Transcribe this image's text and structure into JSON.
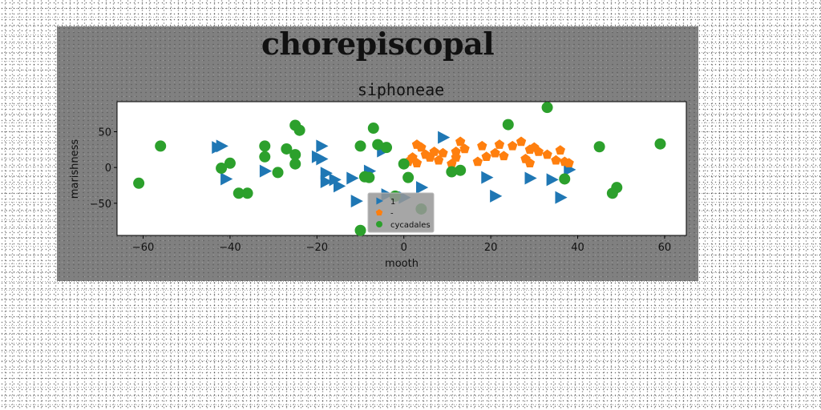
{
  "figure_title": "chorepiscopal",
  "chart_data": {
    "type": "scatter",
    "title": "siphoneae",
    "xlabel": "mooth",
    "ylabel": "marishness",
    "xlim": [
      -66,
      65
    ],
    "ylim": [
      -95,
      92
    ],
    "xticks": [
      -60,
      -40,
      -20,
      0,
      20,
      40,
      60
    ],
    "yticks": [
      -50,
      0,
      50
    ],
    "grid": false,
    "legend_position": "lower-center",
    "series": [
      {
        "name": "1",
        "marker": "triangle-right",
        "color": "#1f77b4",
        "points": [
          [
            -43,
            28
          ],
          [
            -42,
            30
          ],
          [
            -41,
            -16
          ],
          [
            -32,
            -5
          ],
          [
            -20,
            15
          ],
          [
            -19,
            12
          ],
          [
            -19,
            30
          ],
          [
            -18,
            -8
          ],
          [
            -18,
            -20
          ],
          [
            -16,
            -17
          ],
          [
            -15,
            -26
          ],
          [
            -12,
            -15
          ],
          [
            -11,
            -47
          ],
          [
            -8,
            -5
          ],
          [
            -5,
            23
          ],
          [
            -4,
            -38
          ],
          [
            0,
            -42
          ],
          [
            4,
            -28
          ],
          [
            9,
            42
          ],
          [
            19,
            -14
          ],
          [
            21,
            -40
          ],
          [
            29,
            -15
          ],
          [
            34,
            -17
          ],
          [
            36,
            -42
          ],
          [
            38,
            -3
          ]
        ]
      },
      {
        "name": "-",
        "marker": "pentagon",
        "color": "#ff7f0e",
        "points": [
          [
            1,
            8
          ],
          [
            2,
            14
          ],
          [
            3,
            32
          ],
          [
            3,
            6
          ],
          [
            4,
            28
          ],
          [
            5,
            18
          ],
          [
            6,
            14
          ],
          [
            7,
            22
          ],
          [
            8,
            10
          ],
          [
            9,
            20
          ],
          [
            11,
            5
          ],
          [
            12,
            22
          ],
          [
            12,
            14
          ],
          [
            13,
            36
          ],
          [
            14,
            26
          ],
          [
            17,
            8
          ],
          [
            18,
            30
          ],
          [
            19,
            15
          ],
          [
            21,
            20
          ],
          [
            22,
            32
          ],
          [
            23,
            16
          ],
          [
            25,
            30
          ],
          [
            27,
            36
          ],
          [
            28,
            12
          ],
          [
            29,
            25
          ],
          [
            30,
            28
          ],
          [
            31,
            22
          ],
          [
            33,
            18
          ],
          [
            35,
            10
          ],
          [
            36,
            24
          ],
          [
            37,
            8
          ],
          [
            38,
            6
          ],
          [
            29,
            6
          ]
        ]
      },
      {
        "name": "cycadales",
        "marker": "circle",
        "color": "#2ca02c",
        "points": [
          [
            -61,
            -22
          ],
          [
            -56,
            30
          ],
          [
            -42,
            -1
          ],
          [
            -40,
            6
          ],
          [
            -38,
            -36
          ],
          [
            -36,
            -36
          ],
          [
            -32,
            15
          ],
          [
            -32,
            30
          ],
          [
            -29,
            -7
          ],
          [
            -27,
            26
          ],
          [
            -25,
            18
          ],
          [
            -25,
            5
          ],
          [
            -25,
            59
          ],
          [
            -24,
            52
          ],
          [
            -10,
            30
          ],
          [
            -9,
            -13
          ],
          [
            -7,
            55
          ],
          [
            -6,
            32
          ],
          [
            -4,
            28
          ],
          [
            -10,
            -88
          ],
          [
            -2,
            -40
          ],
          [
            0,
            5
          ],
          [
            1,
            -14
          ],
          [
            4,
            -58
          ],
          [
            11,
            -6
          ],
          [
            13,
            -4
          ],
          [
            24,
            60
          ],
          [
            33,
            84
          ],
          [
            37,
            -16
          ],
          [
            45,
            29
          ],
          [
            48,
            -36
          ],
          [
            49,
            -28
          ],
          [
            59,
            33
          ],
          [
            -8,
            -14
          ]
        ]
      }
    ]
  }
}
